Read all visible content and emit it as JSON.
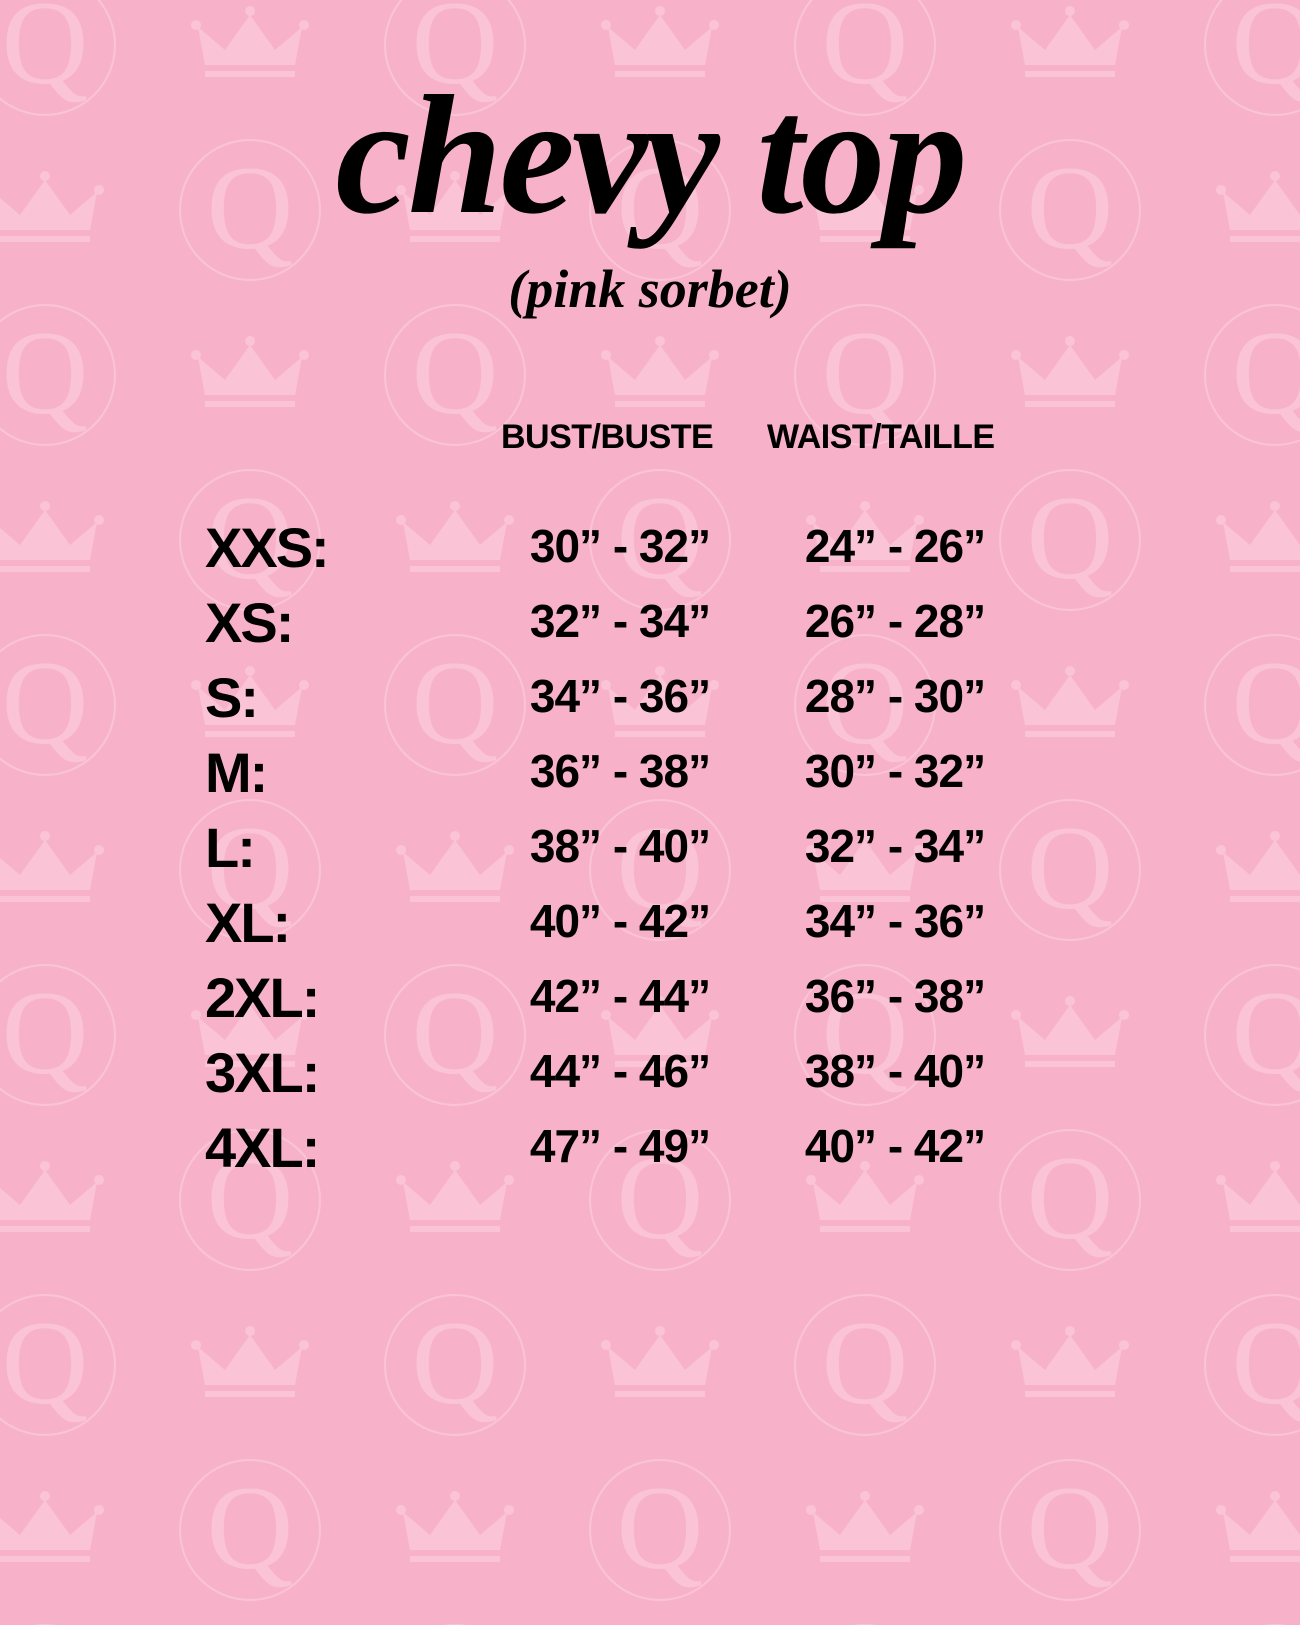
{
  "background_color": "#f7b2ca",
  "pattern_icons": [
    "q-crown-monogram-icon",
    "crown-icon"
  ],
  "title": "chevy top",
  "subtitle": "(pink sorbet)",
  "table": {
    "headers": [
      "BUST/BUSTE",
      "WAIST/TAILLE"
    ],
    "rows": [
      {
        "size": "XXS:",
        "bust": "30” - 32”",
        "waist": "24” - 26”"
      },
      {
        "size": "XS:",
        "bust": "32” - 34”",
        "waist": "26” - 28”"
      },
      {
        "size": "S:",
        "bust": "34” - 36”",
        "waist": "28” - 30”"
      },
      {
        "size": "M:",
        "bust": "36” - 38”",
        "waist": "30” - 32”"
      },
      {
        "size": "L:",
        "bust": "38” - 40”",
        "waist": "32” - 34”"
      },
      {
        "size": "XL:",
        "bust": "40” - 42”",
        "waist": "34” - 36”"
      },
      {
        "size": "2XL:",
        "bust": "42” - 44”",
        "waist": "36” - 38”"
      },
      {
        "size": "3XL:",
        "bust": "44” - 46”",
        "waist": "38” - 40”"
      },
      {
        "size": "4XL:",
        "bust": "47” - 49”",
        "waist": "40” - 42”"
      }
    ]
  }
}
